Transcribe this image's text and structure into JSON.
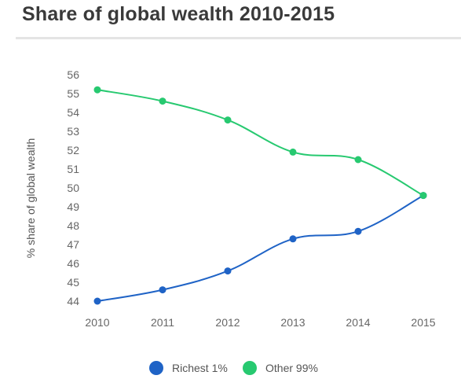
{
  "page": {
    "title": "Share of global wealth 2010-2015"
  },
  "chart_data": {
    "type": "line",
    "title": "Share of global wealth 2010-2015",
    "xlabel": "",
    "ylabel": "% share of global wealth",
    "x": [
      "2010",
      "2011",
      "2012",
      "2013",
      "2014",
      "2015"
    ],
    "ylim": [
      44,
      56
    ],
    "yticks": [
      44,
      45,
      46,
      47,
      48,
      49,
      50,
      51,
      52,
      53,
      54,
      55,
      56
    ],
    "grid": false,
    "legend_position": "bottom",
    "series": [
      {
        "name": "Richest 1%",
        "color": "#1f63c6",
        "values": [
          44.0,
          44.6,
          45.6,
          47.3,
          47.7,
          49.6
        ]
      },
      {
        "name": "Other 99%",
        "color": "#27c970",
        "values": [
          55.2,
          54.6,
          53.6,
          51.9,
          51.5,
          49.6
        ]
      }
    ]
  }
}
